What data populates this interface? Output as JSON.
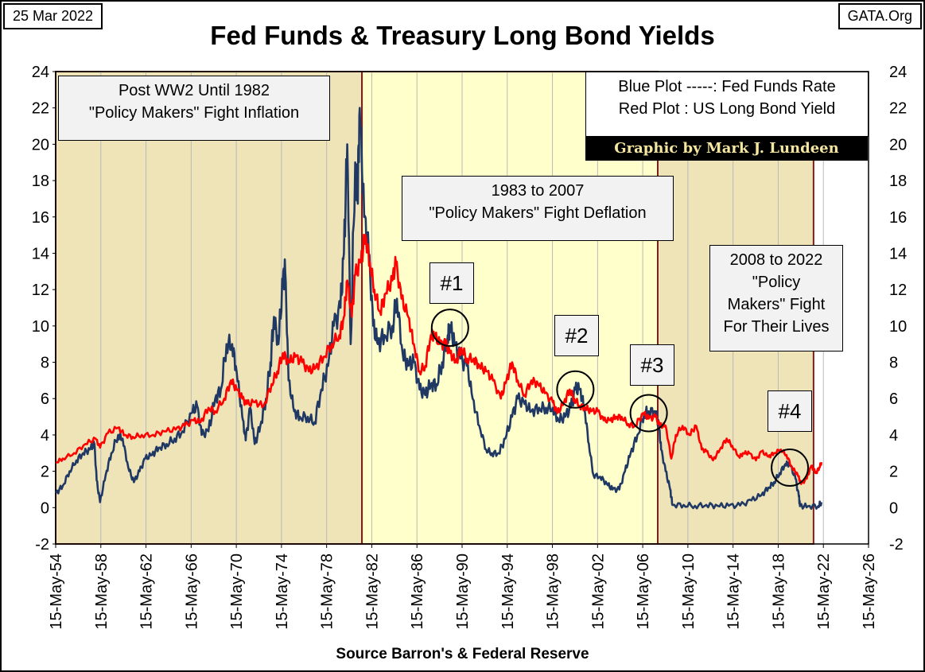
{
  "header": {
    "date": "25 Mar 2022",
    "site": "GATA.Org",
    "title": "Fed Funds & Treasury Long Bond Yields"
  },
  "annotations": {
    "post_ww2": [
      "Post WW2 Until 1982",
      "\"Policy Makers\" Fight Inflation"
    ],
    "era_1983": [
      "1983 to 2007",
      "\"Policy Makers\" Fight Deflation"
    ],
    "era_2008": [
      "2008 to 2022",
      "\"Policy",
      "Makers\" Fight",
      "For Their Lives"
    ],
    "legend": [
      "Blue Plot -----: Fed Funds Rate",
      "Red Plot : US Long Bond Yield"
    ],
    "credit": "Graphic by Mark J. Lundeen",
    "markers": [
      {
        "label": "#1",
        "year": 1989.3,
        "value": 9.9
      },
      {
        "label": "#2",
        "year": 2000.4,
        "value": 6.5
      },
      {
        "label": "#3",
        "year": 2006.9,
        "value": 5.2
      },
      {
        "label": "#4",
        "year": 2019.4,
        "value": 2.2
      }
    ]
  },
  "source": "Source Barron's & Federal Reserve",
  "colors": {
    "fed_funds": "#1f3864",
    "long_bond": "#ff0000",
    "era_tan": "#efe4b8",
    "era_light": "#ffffcc",
    "era_border": "#7a1f1f"
  },
  "chart_data": {
    "type": "line",
    "xlabel": "",
    "ylabel": "",
    "ylim": [
      -2,
      24
    ],
    "y_ticks": [
      "-2",
      "0",
      "2",
      "4",
      "6",
      "8",
      "10",
      "12",
      "14",
      "16",
      "18",
      "20",
      "22",
      "24"
    ],
    "x_range": [
      1954.37,
      2026.37
    ],
    "x_ticks": [
      "15-May-54",
      "15-May-58",
      "15-May-62",
      "15-May-66",
      "15-May-70",
      "15-May-74",
      "15-May-78",
      "15-May-82",
      "15-May-86",
      "15-May-90",
      "15-May-94",
      "15-May-98",
      "15-May-02",
      "15-May-06",
      "15-May-10",
      "15-May-14",
      "15-May-18",
      "15-May-22",
      "15-May-26"
    ],
    "grid": "vertical",
    "eras": [
      {
        "from": 1954.37,
        "to": 1981.5,
        "shade": "tan"
      },
      {
        "from": 1981.5,
        "to": 2007.7,
        "shade": "light"
      },
      {
        "from": 2007.7,
        "to": 2021.5,
        "shade": "tan"
      }
    ],
    "series": [
      {
        "name": "Fed Funds Rate",
        "color": "#1f3864",
        "points": [
          [
            1954.4,
            0.8
          ],
          [
            1955.0,
            1.2
          ],
          [
            1955.6,
            2.0
          ],
          [
            1956.2,
            2.6
          ],
          [
            1956.8,
            3.0
          ],
          [
            1957.4,
            3.2
          ],
          [
            1957.8,
            3.5
          ],
          [
            1958.0,
            1.5
          ],
          [
            1958.3,
            0.3
          ],
          [
            1958.8,
            1.8
          ],
          [
            1959.3,
            3.0
          ],
          [
            1959.9,
            4.0
          ],
          [
            1960.3,
            3.8
          ],
          [
            1960.8,
            2.2
          ],
          [
            1961.3,
            1.4
          ],
          [
            1961.8,
            2.0
          ],
          [
            1962.3,
            2.7
          ],
          [
            1962.9,
            2.9
          ],
          [
            1963.5,
            3.3
          ],
          [
            1964.2,
            3.5
          ],
          [
            1964.9,
            3.8
          ],
          [
            1965.6,
            4.2
          ],
          [
            1966.4,
            5.2
          ],
          [
            1966.9,
            5.6
          ],
          [
            1967.3,
            4.0
          ],
          [
            1967.9,
            4.2
          ],
          [
            1968.5,
            6.0
          ],
          [
            1969.0,
            6.5
          ],
          [
            1969.5,
            9.0
          ],
          [
            1970.0,
            9.0
          ],
          [
            1970.4,
            7.5
          ],
          [
            1970.9,
            5.0
          ],
          [
            1971.2,
            3.7
          ],
          [
            1971.6,
            5.5
          ],
          [
            1972.0,
            3.5
          ],
          [
            1972.5,
            4.5
          ],
          [
            1973.0,
            6.0
          ],
          [
            1973.4,
            8.0
          ],
          [
            1973.7,
            10.5
          ],
          [
            1974.1,
            9.0
          ],
          [
            1974.5,
            12.5
          ],
          [
            1974.7,
            13.0
          ],
          [
            1975.0,
            7.0
          ],
          [
            1975.5,
            5.3
          ],
          [
            1976.0,
            5.0
          ],
          [
            1976.7,
            5.0
          ],
          [
            1977.3,
            4.7
          ],
          [
            1977.9,
            6.5
          ],
          [
            1978.5,
            7.8
          ],
          [
            1979.0,
            10.0
          ],
          [
            1979.6,
            11.0
          ],
          [
            1979.9,
            14.0
          ],
          [
            1980.2,
            20.0
          ],
          [
            1980.5,
            9.0
          ],
          [
            1980.9,
            19.0
          ],
          [
            1981.1,
            17.0
          ],
          [
            1981.3,
            22.0
          ],
          [
            1981.7,
            16.0
          ],
          [
            1982.1,
            14.0
          ],
          [
            1982.5,
            10.0
          ],
          [
            1982.9,
            9.0
          ],
          [
            1983.5,
            9.5
          ],
          [
            1984.2,
            10.0
          ],
          [
            1984.6,
            11.5
          ],
          [
            1985.1,
            8.5
          ],
          [
            1985.6,
            7.8
          ],
          [
            1986.1,
            8.0
          ],
          [
            1986.6,
            6.5
          ],
          [
            1987.1,
            6.2
          ],
          [
            1987.6,
            6.8
          ],
          [
            1988.1,
            6.8
          ],
          [
            1988.6,
            8.0
          ],
          [
            1989.1,
            9.5
          ],
          [
            1989.3,
            10.0
          ],
          [
            1989.7,
            9.0
          ],
          [
            1990.2,
            8.2
          ],
          [
            1990.8,
            7.8
          ],
          [
            1991.3,
            6.0
          ],
          [
            1991.9,
            4.5
          ],
          [
            1992.5,
            3.2
          ],
          [
            1993.0,
            3.0
          ],
          [
            1993.6,
            3.0
          ],
          [
            1994.2,
            3.8
          ],
          [
            1994.8,
            5.0
          ],
          [
            1995.3,
            6.0
          ],
          [
            1995.9,
            5.7
          ],
          [
            1996.5,
            5.3
          ],
          [
            1997.2,
            5.5
          ],
          [
            1997.8,
            5.5
          ],
          [
            1998.4,
            5.5
          ],
          [
            1998.9,
            4.8
          ],
          [
            1999.5,
            5.0
          ],
          [
            2000.0,
            5.5
          ],
          [
            2000.4,
            6.5
          ],
          [
            2000.8,
            6.5
          ],
          [
            2001.2,
            5.5
          ],
          [
            2001.6,
            3.5
          ],
          [
            2002.0,
            1.8
          ],
          [
            2002.6,
            1.7
          ],
          [
            2003.2,
            1.3
          ],
          [
            2003.7,
            1.0
          ],
          [
            2004.3,
            1.0
          ],
          [
            2004.8,
            2.0
          ],
          [
            2005.3,
            3.0
          ],
          [
            2005.9,
            4.0
          ],
          [
            2006.5,
            5.2
          ],
          [
            2006.9,
            5.3
          ],
          [
            2007.5,
            5.3
          ],
          [
            2007.8,
            4.5
          ],
          [
            2008.0,
            3.2
          ],
          [
            2008.4,
            2.0
          ],
          [
            2008.8,
            1.0
          ],
          [
            2009.0,
            0.15
          ],
          [
            2010.0,
            0.15
          ],
          [
            2011.0,
            0.1
          ],
          [
            2012.0,
            0.15
          ],
          [
            2013.0,
            0.1
          ],
          [
            2014.0,
            0.1
          ],
          [
            2015.0,
            0.12
          ],
          [
            2016.0,
            0.4
          ],
          [
            2016.9,
            0.7
          ],
          [
            2017.5,
            1.1
          ],
          [
            2018.0,
            1.4
          ],
          [
            2018.5,
            1.9
          ],
          [
            2019.0,
            2.4
          ],
          [
            2019.4,
            2.4
          ],
          [
            2019.9,
            1.6
          ],
          [
            2020.2,
            0.6
          ],
          [
            2020.3,
            0.08
          ],
          [
            2021.0,
            0.08
          ],
          [
            2021.9,
            0.08
          ],
          [
            2022.2,
            0.3
          ]
        ]
      },
      {
        "name": "US Long Bond Yield",
        "color": "#ff0000",
        "points": [
          [
            1954.4,
            2.5
          ],
          [
            1955.0,
            2.7
          ],
          [
            1956.0,
            3.0
          ],
          [
            1957.0,
            3.5
          ],
          [
            1957.9,
            3.8
          ],
          [
            1958.3,
            3.3
          ],
          [
            1959.0,
            4.1
          ],
          [
            1959.9,
            4.4
          ],
          [
            1960.5,
            4.0
          ],
          [
            1961.2,
            3.9
          ],
          [
            1962.0,
            4.0
          ],
          [
            1963.0,
            4.0
          ],
          [
            1964.0,
            4.2
          ],
          [
            1965.0,
            4.3
          ],
          [
            1965.8,
            4.5
          ],
          [
            1966.6,
            4.8
          ],
          [
            1967.2,
            4.7
          ],
          [
            1967.9,
            5.5
          ],
          [
            1968.5,
            5.3
          ],
          [
            1969.3,
            6.0
          ],
          [
            1969.9,
            7.0
          ],
          [
            1970.4,
            6.5
          ],
          [
            1970.9,
            6.0
          ],
          [
            1971.3,
            5.7
          ],
          [
            1972.0,
            5.8
          ],
          [
            1972.8,
            5.6
          ],
          [
            1973.5,
            6.8
          ],
          [
            1974.0,
            7.5
          ],
          [
            1974.5,
            8.5
          ],
          [
            1975.0,
            8.0
          ],
          [
            1975.6,
            8.3
          ],
          [
            1976.2,
            8.0
          ],
          [
            1976.8,
            7.5
          ],
          [
            1977.4,
            7.7
          ],
          [
            1978.1,
            8.3
          ],
          [
            1978.8,
            9.0
          ],
          [
            1979.5,
            9.5
          ],
          [
            1979.9,
            10.5
          ],
          [
            1980.2,
            12.5
          ],
          [
            1980.6,
            10.5
          ],
          [
            1980.9,
            12.8
          ],
          [
            1981.4,
            13.5
          ],
          [
            1981.8,
            15.0
          ],
          [
            1982.2,
            13.5
          ],
          [
            1982.6,
            12.0
          ],
          [
            1983.1,
            10.8
          ],
          [
            1983.6,
            11.8
          ],
          [
            1984.2,
            12.5
          ],
          [
            1984.5,
            13.5
          ],
          [
            1985.0,
            11.5
          ],
          [
            1985.6,
            10.5
          ],
          [
            1986.1,
            9.0
          ],
          [
            1986.6,
            7.5
          ],
          [
            1987.1,
            7.8
          ],
          [
            1987.6,
            9.5
          ],
          [
            1987.9,
            9.5
          ],
          [
            1988.4,
            9.0
          ],
          [
            1988.9,
            9.0
          ],
          [
            1989.3,
            8.5
          ],
          [
            1989.8,
            8.0
          ],
          [
            1990.3,
            8.8
          ],
          [
            1990.8,
            8.2
          ],
          [
            1991.4,
            8.2
          ],
          [
            1991.9,
            7.8
          ],
          [
            1992.5,
            7.5
          ],
          [
            1993.1,
            7.0
          ],
          [
            1993.8,
            6.0
          ],
          [
            1994.3,
            7.0
          ],
          [
            1994.8,
            8.0
          ],
          [
            1995.3,
            7.0
          ],
          [
            1995.9,
            6.2
          ],
          [
            1996.5,
            7.0
          ],
          [
            1997.1,
            6.8
          ],
          [
            1997.7,
            6.3
          ],
          [
            1998.4,
            5.8
          ],
          [
            1998.8,
            5.2
          ],
          [
            1999.4,
            5.8
          ],
          [
            1999.9,
            6.5
          ],
          [
            2000.3,
            6.0
          ],
          [
            2000.8,
            5.6
          ],
          [
            2001.3,
            5.5
          ],
          [
            2001.8,
            5.3
          ],
          [
            2002.4,
            5.3
          ],
          [
            2002.9,
            4.8
          ],
          [
            2003.5,
            4.8
          ],
          [
            2004.0,
            5.0
          ],
          [
            2004.5,
            5.0
          ],
          [
            2005.1,
            4.6
          ],
          [
            2005.7,
            4.5
          ],
          [
            2006.4,
            5.2
          ],
          [
            2006.9,
            4.9
          ],
          [
            2007.5,
            5.0
          ],
          [
            2007.9,
            4.5
          ],
          [
            2008.4,
            4.5
          ],
          [
            2008.9,
            2.7
          ],
          [
            2009.3,
            4.0
          ],
          [
            2009.9,
            4.5
          ],
          [
            2010.5,
            4.0
          ],
          [
            2011.1,
            4.5
          ],
          [
            2011.6,
            3.2
          ],
          [
            2012.0,
            3.1
          ],
          [
            2012.6,
            2.6
          ],
          [
            2013.2,
            3.2
          ],
          [
            2013.8,
            3.8
          ],
          [
            2014.3,
            3.4
          ],
          [
            2014.9,
            2.8
          ],
          [
            2015.3,
            3.0
          ],
          [
            2015.8,
            3.0
          ],
          [
            2016.4,
            2.6
          ],
          [
            2016.9,
            3.1
          ],
          [
            2017.5,
            2.8
          ],
          [
            2018.0,
            3.0
          ],
          [
            2018.6,
            3.2
          ],
          [
            2019.1,
            2.9
          ],
          [
            2019.6,
            2.2
          ],
          [
            2020.1,
            1.8
          ],
          [
            2020.4,
            1.3
          ],
          [
            2020.9,
            1.6
          ],
          [
            2021.3,
            2.3
          ],
          [
            2021.7,
            1.9
          ],
          [
            2022.0,
            2.2
          ],
          [
            2022.2,
            2.5
          ]
        ]
      }
    ]
  }
}
